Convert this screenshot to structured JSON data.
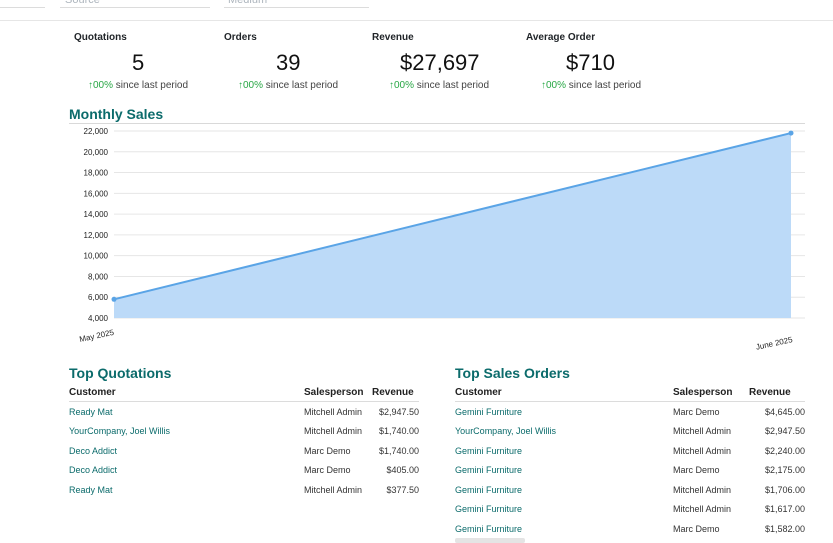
{
  "filters": {
    "source_placeholder": "Source",
    "medium_placeholder": "Medium"
  },
  "kpis": [
    {
      "label": "Quotations",
      "value": "5",
      "trend_pct": "00%",
      "trend_text": "since last period"
    },
    {
      "label": "Orders",
      "value": "39",
      "trend_pct": "00%",
      "trend_text": "since last period"
    },
    {
      "label": "Revenue",
      "value": "$27,697",
      "trend_pct": "00%",
      "trend_text": "since last period"
    },
    {
      "label": "Average Order",
      "value": "$710",
      "trend_pct": "00%",
      "trend_text": "since last period"
    }
  ],
  "monthly_sales": {
    "title": "Monthly Sales"
  },
  "chart_data": {
    "type": "area",
    "categories": [
      "May 2025",
      "June 2025"
    ],
    "values": [
      5800,
      21800
    ],
    "ylim": [
      4000,
      22000
    ],
    "yticks": [
      "4,000",
      "6,000",
      "8,000",
      "10,000",
      "12,000",
      "14,000",
      "16,000",
      "18,000",
      "20,000",
      "22,000"
    ],
    "grid": true,
    "line_color": "#5aa4e6",
    "fill_color": "#bcdaf8"
  },
  "top_quotations": {
    "title": "Top Quotations",
    "headers": [
      "Customer",
      "Salesperson",
      "Revenue"
    ],
    "rows": [
      [
        "Ready Mat",
        "Mitchell Admin",
        "$2,947.50"
      ],
      [
        "YourCompany, Joel Willis",
        "Mitchell Admin",
        "$1,740.00"
      ],
      [
        "Deco Addict",
        "Marc Demo",
        "$1,740.00"
      ],
      [
        "Deco Addict",
        "Marc Demo",
        "$405.00"
      ],
      [
        "Ready Mat",
        "Mitchell Admin",
        "$377.50"
      ]
    ]
  },
  "top_sales_orders": {
    "title": "Top Sales Orders",
    "headers": [
      "Customer",
      "Salesperson",
      "Revenue"
    ],
    "rows": [
      [
        "Gemini Furniture",
        "Marc Demo",
        "$4,645.00"
      ],
      [
        "YourCompany, Joel Willis",
        "Mitchell Admin",
        "$2,947.50"
      ],
      [
        "Gemini Furniture",
        "Mitchell Admin",
        "$2,240.00"
      ],
      [
        "Gemini Furniture",
        "Marc Demo",
        "$2,175.00"
      ],
      [
        "Gemini Furniture",
        "Mitchell Admin",
        "$1,706.00"
      ],
      [
        "Gemini Furniture",
        "Mitchell Admin",
        "$1,617.00"
      ],
      [
        "Gemini Furniture",
        "Marc Demo",
        "$1,582.00"
      ]
    ]
  }
}
